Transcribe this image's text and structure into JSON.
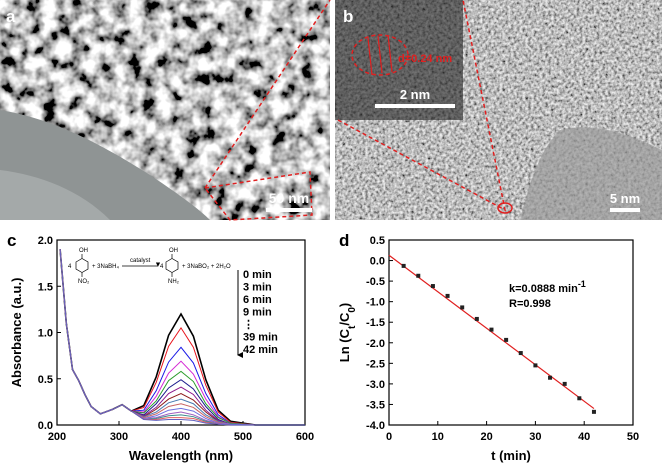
{
  "panels": {
    "a": {
      "label": "a",
      "scale_bar": "50 nm"
    },
    "b": {
      "label": "b",
      "scale_bar": "5 nm",
      "inset_scale_bar": "2 nm",
      "lattice_label": "d=0.24 nm"
    }
  },
  "chart_data": [
    {
      "type": "line",
      "label": "c",
      "xlabel": "Wavelength (nm)",
      "ylabel": "Absorbance (a.u.)",
      "xlim": [
        200,
        600
      ],
      "xticks": [
        200,
        300,
        400,
        500,
        600
      ],
      "ylim": [
        0,
        2.0
      ],
      "yticks": [
        {
          "value": 0,
          "label": "0.0"
        },
        {
          "value": 0.5,
          "label": "0.5"
        },
        {
          "value": 1.0,
          "label": "1.0"
        },
        {
          "value": 1.5,
          "label": "1.5"
        },
        {
          "value": 2.0,
          "label": "2.0"
        }
      ],
      "legend": [
        "0 min",
        "3 min",
        "6 min",
        "9 min",
        "⋮",
        "39 min",
        "42 min"
      ],
      "scheme": {
        "left_prefix": "4",
        "left_top": "OH",
        "left_bottom": "NO₂",
        "reagent": "+ 3NaBH₄",
        "catalyst": "catalyst",
        "right_prefix": "4",
        "right_top": "OH",
        "right_bottom": "NH₂",
        "products": "+ 3NaBO₂ + 2H₂O"
      },
      "x": [
        205,
        215,
        225,
        235,
        245,
        255,
        270,
        290,
        305,
        320,
        340,
        360,
        380,
        400,
        420,
        440,
        460,
        480,
        520,
        600
      ],
      "series": [
        {
          "color": "#000000",
          "values": [
            1.9,
            1.1,
            0.6,
            0.48,
            0.33,
            0.2,
            0.12,
            0.17,
            0.22,
            0.15,
            0.21,
            0.52,
            0.97,
            1.2,
            0.96,
            0.49,
            0.16,
            0.04,
            0,
            0
          ]
        },
        {
          "color": "#e8141c",
          "values": [
            1.9,
            1.1,
            0.6,
            0.48,
            0.33,
            0.2,
            0.12,
            0.17,
            0.22,
            0.15,
            0.19,
            0.46,
            0.85,
            1.05,
            0.84,
            0.43,
            0.14,
            0.03,
            0,
            0
          ]
        },
        {
          "color": "#1a1ae6",
          "values": [
            1.9,
            1.1,
            0.6,
            0.48,
            0.33,
            0.2,
            0.12,
            0.17,
            0.22,
            0.15,
            0.16,
            0.37,
            0.68,
            0.84,
            0.67,
            0.34,
            0.11,
            0.02,
            0,
            0
          ]
        },
        {
          "color": "#d428d4",
          "values": [
            1.9,
            1.1,
            0.6,
            0.48,
            0.33,
            0.2,
            0.12,
            0.17,
            0.22,
            0.15,
            0.14,
            0.31,
            0.56,
            0.69,
            0.55,
            0.28,
            0.09,
            0.02,
            0,
            0
          ]
        },
        {
          "color": "#2a9c2a",
          "values": [
            1.9,
            1.1,
            0.6,
            0.48,
            0.33,
            0.2,
            0.12,
            0.17,
            0.22,
            0.15,
            0.13,
            0.26,
            0.48,
            0.58,
            0.47,
            0.23,
            0.08,
            0.02,
            0,
            0
          ]
        },
        {
          "color": "#1a1a8c",
          "values": [
            1.9,
            1.1,
            0.6,
            0.48,
            0.33,
            0.2,
            0.12,
            0.17,
            0.22,
            0.15,
            0.11,
            0.23,
            0.4,
            0.49,
            0.39,
            0.2,
            0.06,
            0.01,
            0,
            0
          ]
        },
        {
          "color": "#8c1a8c",
          "values": [
            1.9,
            1.1,
            0.6,
            0.48,
            0.33,
            0.2,
            0.12,
            0.17,
            0.22,
            0.15,
            0.1,
            0.19,
            0.34,
            0.41,
            0.33,
            0.16,
            0.05,
            0.01,
            0,
            0
          ]
        },
        {
          "color": "#8c1a1a",
          "values": [
            1.9,
            1.1,
            0.6,
            0.48,
            0.33,
            0.2,
            0.12,
            0.17,
            0.22,
            0.15,
            0.09,
            0.17,
            0.28,
            0.34,
            0.27,
            0.14,
            0.04,
            0.01,
            0,
            0
          ]
        },
        {
          "color": "#4a7ab0",
          "values": [
            1.9,
            1.1,
            0.6,
            0.48,
            0.33,
            0.2,
            0.12,
            0.17,
            0.22,
            0.15,
            0.09,
            0.14,
            0.24,
            0.28,
            0.23,
            0.11,
            0.04,
            0.01,
            0,
            0
          ]
        },
        {
          "color": "#c86464",
          "values": [
            1.9,
            1.1,
            0.6,
            0.48,
            0.33,
            0.2,
            0.12,
            0.17,
            0.22,
            0.15,
            0.08,
            0.12,
            0.2,
            0.23,
            0.19,
            0.09,
            0.03,
            0.01,
            0,
            0
          ]
        },
        {
          "color": "#7070e0",
          "values": [
            1.9,
            1.1,
            0.6,
            0.48,
            0.33,
            0.2,
            0.12,
            0.17,
            0.22,
            0.15,
            0.07,
            0.1,
            0.16,
            0.18,
            0.15,
            0.07,
            0.02,
            0.01,
            0,
            0
          ]
        },
        {
          "color": "#a060c0",
          "values": [
            1.9,
            1.1,
            0.6,
            0.48,
            0.33,
            0.2,
            0.12,
            0.17,
            0.22,
            0.15,
            0.07,
            0.08,
            0.12,
            0.14,
            0.11,
            0.05,
            0.02,
            0,
            0,
            0
          ]
        },
        {
          "color": "#3c8c8c",
          "values": [
            1.9,
            1.1,
            0.6,
            0.48,
            0.33,
            0.2,
            0.12,
            0.17,
            0.22,
            0.15,
            0.06,
            0.07,
            0.1,
            0.11,
            0.09,
            0.04,
            0.01,
            0,
            0,
            0
          ]
        },
        {
          "color": "#e06060",
          "values": [
            1.9,
            1.1,
            0.6,
            0.48,
            0.33,
            0.2,
            0.12,
            0.17,
            0.22,
            0.15,
            0.06,
            0.06,
            0.08,
            0.08,
            0.07,
            0.03,
            0.01,
            0,
            0,
            0
          ]
        },
        {
          "color": "#6060c0",
          "values": [
            1.9,
            1.1,
            0.6,
            0.48,
            0.33,
            0.2,
            0.12,
            0.17,
            0.22,
            0.15,
            0.06,
            0.05,
            0.06,
            0.06,
            0.05,
            0.02,
            0.01,
            0,
            0,
            0
          ]
        }
      ]
    },
    {
      "type": "scatter",
      "label": "d",
      "xlabel": "t (min)",
      "ylabel": [
        "Ln (C",
        "t",
        "/C",
        "0",
        ")"
      ],
      "xlim": [
        0,
        50
      ],
      "xticks": [
        0,
        10,
        20,
        30,
        40,
        50
      ],
      "ylim": [
        -4.0,
        0.5
      ],
      "yticks": [
        {
          "value": -4.0,
          "label": "-4.0"
        },
        {
          "value": -3.5,
          "label": "-3.5"
        },
        {
          "value": -3.0,
          "label": "-3.0"
        },
        {
          "value": -2.5,
          "label": "-2.5"
        },
        {
          "value": -2.0,
          "label": "-2.0"
        },
        {
          "value": -1.5,
          "label": "-1.5"
        },
        {
          "value": -1.0,
          "label": "-1.0"
        },
        {
          "value": -0.5,
          "label": "-0.5"
        },
        {
          "value": 0,
          "label": "0.0"
        },
        {
          "value": 0.5,
          "label": "0.5"
        }
      ],
      "annotation": {
        "k": "k=0.0888 min",
        "k_exp": "-1",
        "r": "R=0.998"
      },
      "series": [
        {
          "color": "#222222",
          "x": [
            3,
            6,
            9,
            12,
            15,
            18,
            21,
            24,
            27,
            30,
            33,
            36,
            39,
            42
          ],
          "values": [
            -0.13,
            -0.37,
            -0.62,
            -0.86,
            -1.14,
            -1.42,
            -1.68,
            -1.93,
            -2.25,
            -2.55,
            -2.85,
            -3.0,
            -3.35,
            -3.68
          ]
        }
      ],
      "fit_line": {
        "color": "#e02020",
        "x": [
          0,
          42
        ],
        "values": [
          0.13,
          -3.6
        ]
      }
    }
  ]
}
